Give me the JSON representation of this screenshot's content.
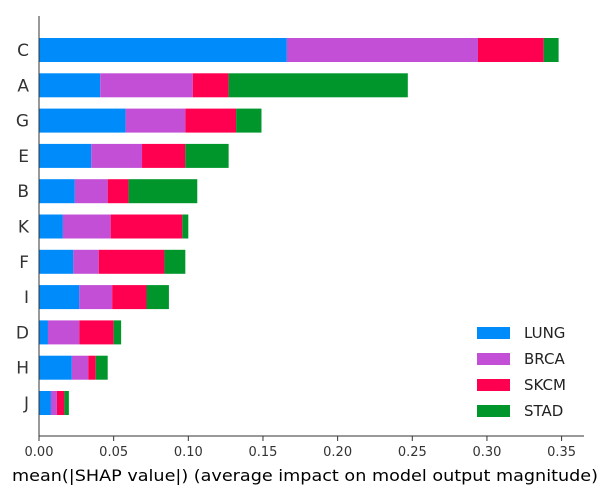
{
  "chart_data": {
    "type": "bar",
    "orientation": "horizontal",
    "stacked": true,
    "categories": [
      "C",
      "A",
      "G",
      "E",
      "B",
      "K",
      "F",
      "I",
      "D",
      "H",
      "J"
    ],
    "series": [
      {
        "name": "LUNG",
        "color": "#008bfb",
        "values": [
          0.166,
          0.041,
          0.058,
          0.035,
          0.024,
          0.016,
          0.023,
          0.027,
          0.006,
          0.022,
          0.008
        ]
      },
      {
        "name": "BRCA",
        "color": "#c34fd6",
        "values": [
          0.128,
          0.062,
          0.04,
          0.034,
          0.022,
          0.032,
          0.017,
          0.022,
          0.021,
          0.011,
          0.004
        ]
      },
      {
        "name": "SKCM",
        "color": "#ff0051",
        "values": [
          0.044,
          0.024,
          0.034,
          0.029,
          0.014,
          0.048,
          0.044,
          0.023,
          0.023,
          0.005,
          0.005
        ]
      },
      {
        "name": "STAD",
        "color": "#00962b",
        "values": [
          0.01,
          0.12,
          0.017,
          0.029,
          0.046,
          0.004,
          0.014,
          0.015,
          0.005,
          0.008,
          0.003
        ]
      }
    ],
    "xlabel": "mean(|SHAP value|) (average impact on model output magnitude)",
    "ylabel": "",
    "title": "",
    "xlim": [
      0,
      0.365
    ],
    "xticks": [
      0,
      0.05,
      0.1,
      0.15,
      0.2,
      0.25,
      0.3,
      0.35
    ],
    "xtick_labels": [
      "0.00",
      "0.05",
      "0.10",
      "0.15",
      "0.20",
      "0.25",
      "0.30",
      "0.35"
    ],
    "grid": false,
    "legend_position": "bottom-right",
    "axis_color": "#333333"
  }
}
